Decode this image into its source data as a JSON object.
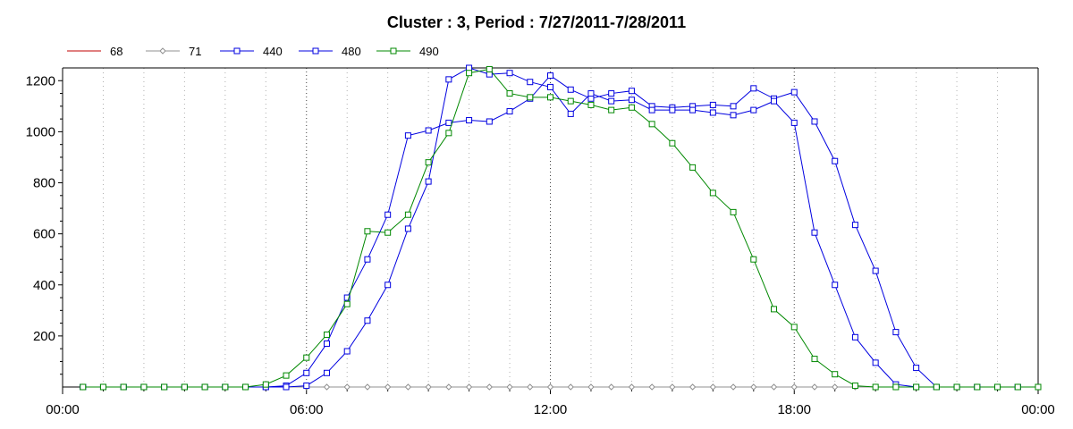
{
  "chart_data": {
    "type": "line",
    "title": "Cluster : 3, Period : 7/27/2011-7/28/2011",
    "xlabel": "",
    "ylabel": "",
    "x_tick_labels": [
      "00:00",
      "06:00",
      "12:00",
      "18:00",
      "00:00"
    ],
    "x_tick_hours": [
      0,
      6,
      12,
      18,
      24
    ],
    "xlim": [
      0,
      24
    ],
    "ylim": [
      0,
      1250
    ],
    "y_ticks": [
      200,
      400,
      600,
      800,
      1000,
      1200
    ],
    "grid": true,
    "legend_position": "top-left",
    "x": [
      0.5,
      1,
      1.5,
      2,
      2.5,
      3,
      3.5,
      4,
      4.5,
      5,
      5.5,
      6,
      6.5,
      7,
      7.5,
      8,
      8.5,
      9,
      9.5,
      10,
      10.5,
      11,
      11.5,
      12,
      12.5,
      13,
      13.5,
      14,
      14.5,
      15,
      15.5,
      16,
      16.5,
      17,
      17.5,
      18,
      18.5,
      19,
      19.5,
      20,
      20.5,
      21,
      21.5,
      22,
      22.5,
      23,
      23.5,
      24
    ],
    "series": [
      {
        "name": "68",
        "color": "#c00000",
        "marker": "none",
        "values": [
          0,
          0,
          0,
          0,
          0,
          0,
          0,
          0,
          0,
          0,
          0,
          0,
          0,
          0,
          0,
          0,
          0,
          0,
          0,
          0,
          0,
          0,
          0,
          0,
          0,
          0,
          0,
          0,
          0,
          0,
          0,
          0,
          0,
          0,
          0,
          0,
          0,
          0,
          0,
          0,
          0,
          0,
          0,
          0,
          0,
          0,
          0,
          0
        ]
      },
      {
        "name": "71",
        "color": "#909090",
        "marker": "diamond",
        "values": [
          0,
          0,
          0,
          0,
          0,
          0,
          0,
          0,
          0,
          0,
          0,
          0,
          0,
          0,
          0,
          0,
          0,
          0,
          0,
          0,
          0,
          0,
          0,
          0,
          0,
          0,
          0,
          0,
          0,
          0,
          0,
          0,
          0,
          0,
          0,
          0,
          0,
          0,
          0,
          0,
          0,
          0,
          0,
          0,
          0,
          0,
          0,
          0
        ]
      },
      {
        "name": "440",
        "color": "#0000e0",
        "marker": "square",
        "values": [
          0,
          0,
          0,
          0,
          0,
          0,
          0,
          0,
          0,
          0,
          5,
          55,
          170,
          350,
          500,
          675,
          985,
          1005,
          1035,
          1045,
          1040,
          1080,
          1130,
          1220,
          1165,
          1130,
          1150,
          1160,
          1100,
          1095,
          1100,
          1105,
          1100,
          1170,
          1130,
          1155,
          1040,
          885,
          635,
          455,
          215,
          75,
          0,
          0,
          0,
          0,
          0,
          0
        ]
      },
      {
        "name": "480",
        "color": "#0000e0",
        "marker": "square",
        "values": [
          0,
          0,
          0,
          0,
          0,
          0,
          0,
          0,
          0,
          0,
          0,
          5,
          55,
          140,
          260,
          400,
          620,
          805,
          1205,
          1250,
          1225,
          1230,
          1195,
          1175,
          1070,
          1150,
          1120,
          1125,
          1085,
          1085,
          1085,
          1075,
          1065,
          1085,
          1120,
          1035,
          605,
          400,
          195,
          95,
          10,
          0,
          0,
          0,
          0,
          0,
          0,
          0
        ]
      },
      {
        "name": "490",
        "color": "#008800",
        "marker": "square",
        "values": [
          0,
          0,
          0,
          0,
          0,
          0,
          0,
          0,
          0,
          10,
          45,
          115,
          205,
          325,
          610,
          605,
          675,
          880,
          995,
          1230,
          1245,
          1150,
          1135,
          1135,
          1120,
          1105,
          1085,
          1095,
          1030,
          955,
          860,
          760,
          685,
          500,
          305,
          235,
          110,
          50,
          5,
          0,
          0,
          0,
          0,
          0,
          0,
          0,
          0,
          0
        ]
      }
    ]
  }
}
